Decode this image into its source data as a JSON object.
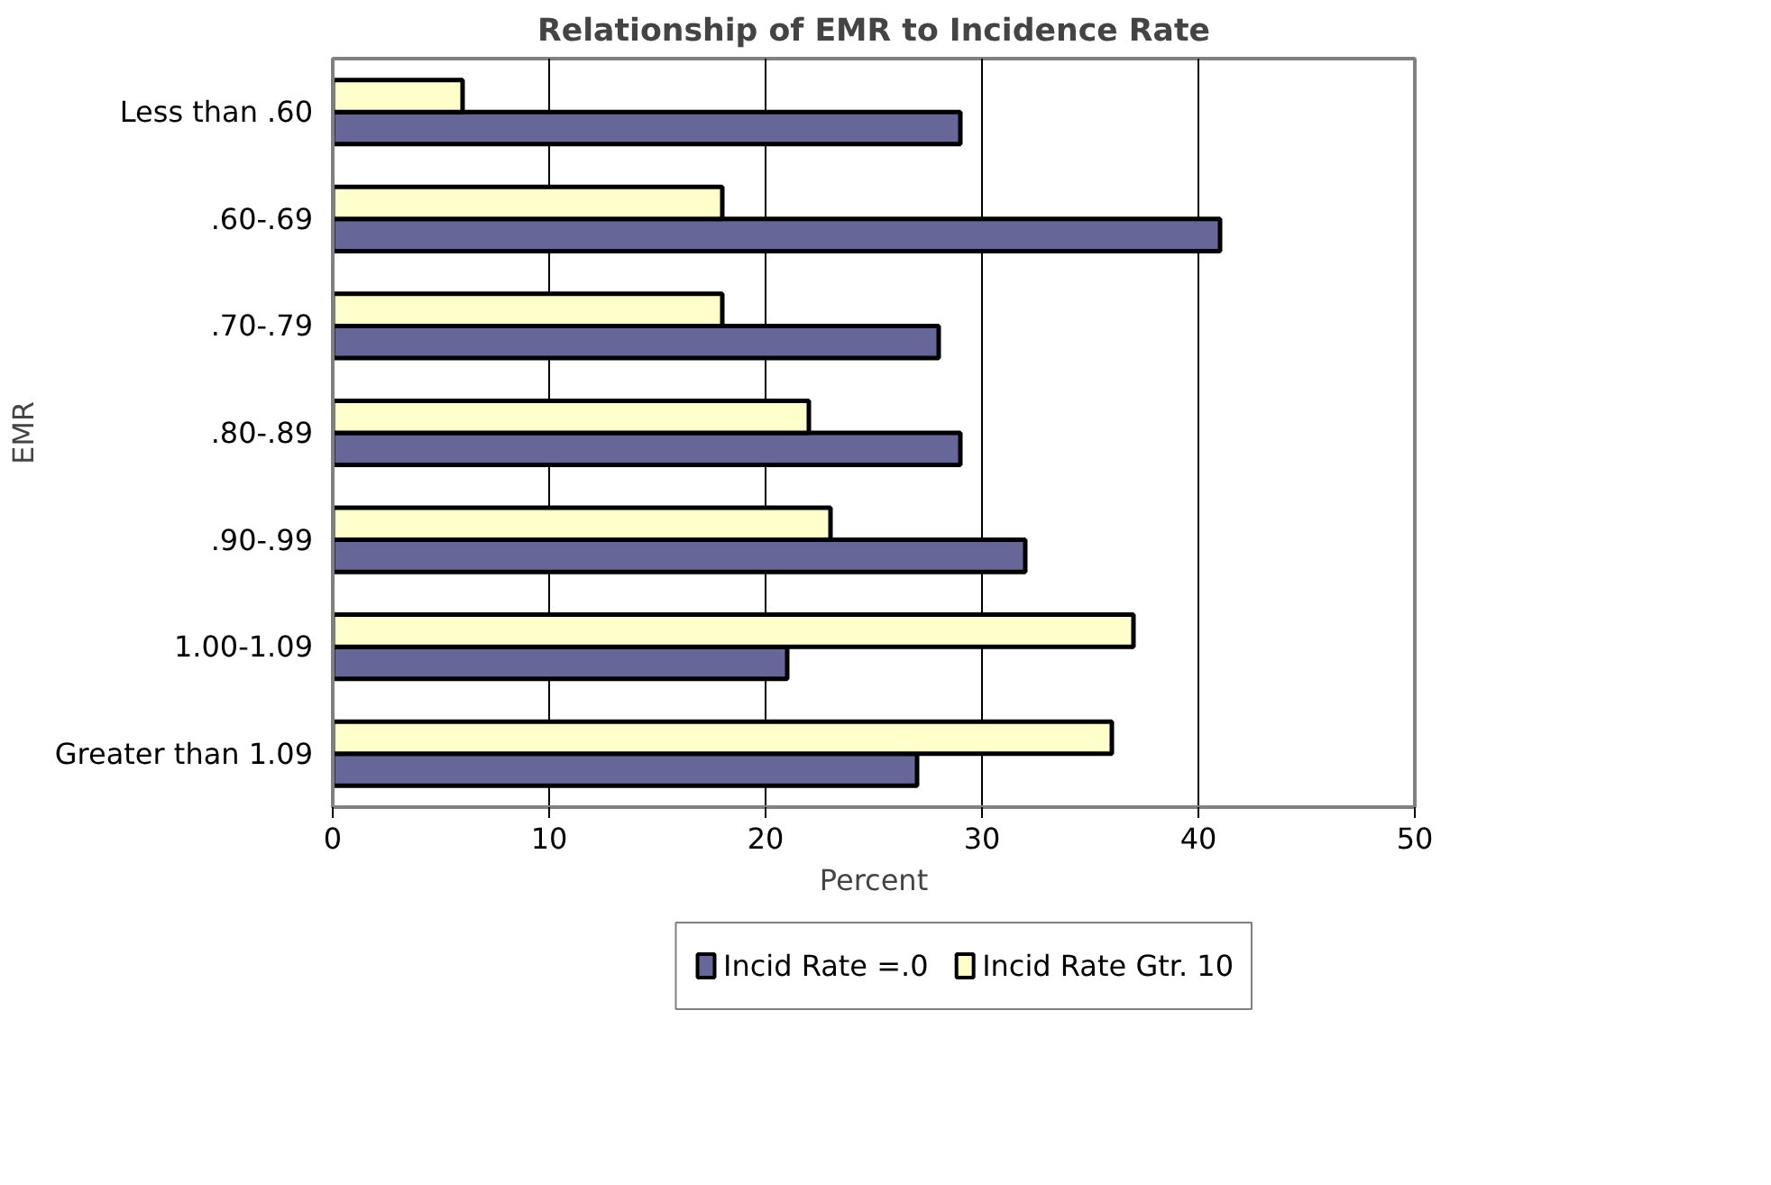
{
  "chart_data": {
    "type": "bar",
    "orientation": "horizontal",
    "title": "Relationship of EMR to Incidence Rate",
    "xlabel": "Percent",
    "ylabel": "EMR",
    "categories": [
      "Less than .60",
      ".60-.69",
      ".70-.79",
      ".80-.89",
      ".90-.99",
      "1.00-1.09",
      "Greater than 1.09"
    ],
    "series": [
      {
        "name": "Incid Rate =.0",
        "color": "#666699",
        "values": [
          29,
          41,
          28,
          29,
          32,
          21,
          27
        ]
      },
      {
        "name": "Incid Rate Gtr. 10",
        "color": "#ffffcc",
        "values": [
          6,
          18,
          18,
          22,
          23,
          37,
          36
        ]
      }
    ],
    "xlim": [
      0,
      50
    ],
    "xticks": [
      0,
      10,
      20,
      30,
      40,
      50
    ],
    "grid": "x",
    "legend": "bottom"
  }
}
